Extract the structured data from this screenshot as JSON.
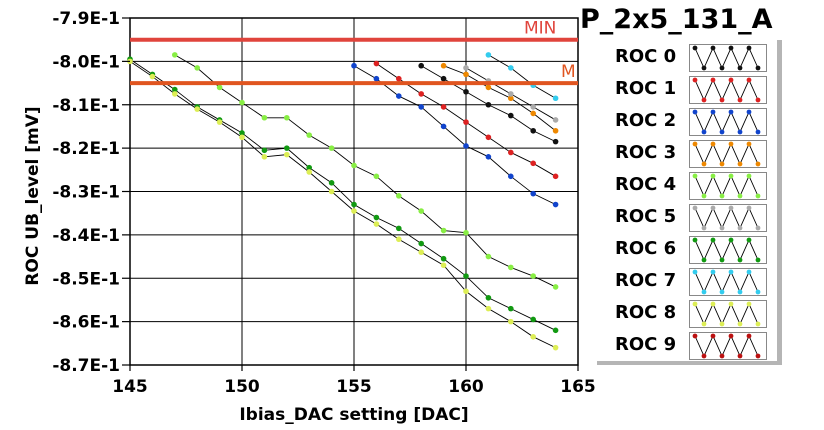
{
  "chart_data": {
    "type": "line",
    "title": "P_2x5_131_A",
    "xlabel": "Ibias_DAC setting [DAC]",
    "ylabel": "ROC UB_level [mV]",
    "xlim": [
      145,
      165
    ],
    "ylim": [
      -0.87,
      -0.79
    ],
    "x_ticks": [
      145,
      150,
      155,
      160,
      165
    ],
    "x_tick_labels": [
      "145",
      "150",
      "155",
      "160",
      "165"
    ],
    "y_ticks": [
      -0.79,
      -0.8,
      -0.81,
      -0.82,
      -0.83,
      -0.84,
      -0.85,
      -0.86,
      -0.87
    ],
    "y_tick_labels": [
      "-7.9E-1",
      "-8.0E-1",
      "-8.1E-1",
      "-8.2E-1",
      "-8.3E-1",
      "-8.4E-1",
      "-8.5E-1",
      "-8.6E-1",
      "-8.7E-1"
    ],
    "grid": true,
    "legend_position": "right",
    "thresholds": [
      {
        "label": "MIN",
        "y": -0.795,
        "color": "#e0443c"
      },
      {
        "label": "M",
        "y": -0.805,
        "color": "#e05520"
      }
    ],
    "series": [
      {
        "name": "ROC 0",
        "color": "#111111",
        "x": [
          158,
          159,
          160,
          161,
          162,
          163,
          164
        ],
        "y": [
          -0.801,
          -0.804,
          -0.807,
          -0.81,
          -0.8125,
          -0.816,
          -0.8185
        ]
      },
      {
        "name": "ROC 1",
        "color": "#dd2222",
        "x": [
          156,
          157,
          158,
          159,
          160,
          161,
          162,
          163,
          164
        ],
        "y": [
          -0.8005,
          -0.804,
          -0.8075,
          -0.8105,
          -0.814,
          -0.8175,
          -0.821,
          -0.8235,
          -0.8265
        ]
      },
      {
        "name": "ROC 2",
        "color": "#1144cc",
        "x": [
          155,
          156,
          157,
          158,
          159,
          160,
          161,
          162,
          163,
          164
        ],
        "y": [
          -0.801,
          -0.804,
          -0.808,
          -0.8105,
          -0.815,
          -0.8195,
          -0.822,
          -0.8265,
          -0.8305,
          -0.833
        ]
      },
      {
        "name": "ROC 3",
        "color": "#ee8800",
        "x": [
          159,
          160,
          161,
          162,
          163,
          164
        ],
        "y": [
          -0.801,
          -0.803,
          -0.806,
          -0.8085,
          -0.812,
          -0.816
        ]
      },
      {
        "name": "ROC 4",
        "color": "#88ee44",
        "x": [
          147,
          148,
          149,
          150,
          151,
          152,
          153,
          154,
          155,
          156,
          157,
          158,
          159,
          160,
          161,
          162,
          163,
          164
        ],
        "y": [
          -0.7985,
          -0.8015,
          -0.806,
          -0.8095,
          -0.813,
          -0.813,
          -0.817,
          -0.82,
          -0.824,
          -0.8265,
          -0.831,
          -0.8345,
          -0.839,
          -0.8395,
          -0.845,
          -0.8475,
          -0.8495,
          -0.852
        ]
      },
      {
        "name": "ROC 5",
        "color": "#aaaaaa",
        "x": [
          160,
          161,
          162,
          163,
          164
        ],
        "y": [
          -0.8015,
          -0.8045,
          -0.8075,
          -0.8105,
          -0.8135
        ]
      },
      {
        "name": "ROC 6",
        "color": "#119911",
        "x": [
          145,
          146,
          147,
          148,
          149,
          150,
          151,
          152,
          153,
          154,
          155,
          156,
          157,
          158,
          159,
          160,
          161,
          162,
          163,
          164
        ],
        "y": [
          -0.7995,
          -0.803,
          -0.8065,
          -0.8105,
          -0.8135,
          -0.8165,
          -0.8205,
          -0.82,
          -0.8245,
          -0.828,
          -0.833,
          -0.836,
          -0.8385,
          -0.842,
          -0.8455,
          -0.8495,
          -0.8545,
          -0.857,
          -0.8595,
          -0.862
        ]
      },
      {
        "name": "ROC 7",
        "color": "#33ccee",
        "x": [
          161,
          162,
          163,
          164
        ],
        "y": [
          -0.7985,
          -0.8015,
          -0.8055,
          -0.8085
        ]
      },
      {
        "name": "ROC 8",
        "color": "#ddee55",
        "x": [
          145,
          146,
          147,
          148,
          149,
          150,
          151,
          152,
          153,
          154,
          155,
          156,
          157,
          158,
          159,
          160,
          161,
          162,
          163,
          164
        ],
        "y": [
          -0.8,
          -0.8035,
          -0.8075,
          -0.811,
          -0.814,
          -0.8175,
          -0.822,
          -0.8215,
          -0.8255,
          -0.83,
          -0.8345,
          -0.8375,
          -0.841,
          -0.844,
          -0.847,
          -0.853,
          -0.857,
          -0.86,
          -0.8635,
          -0.866
        ]
      },
      {
        "name": "ROC 9",
        "color": "#bb1111",
        "x": [],
        "y": []
      }
    ]
  }
}
